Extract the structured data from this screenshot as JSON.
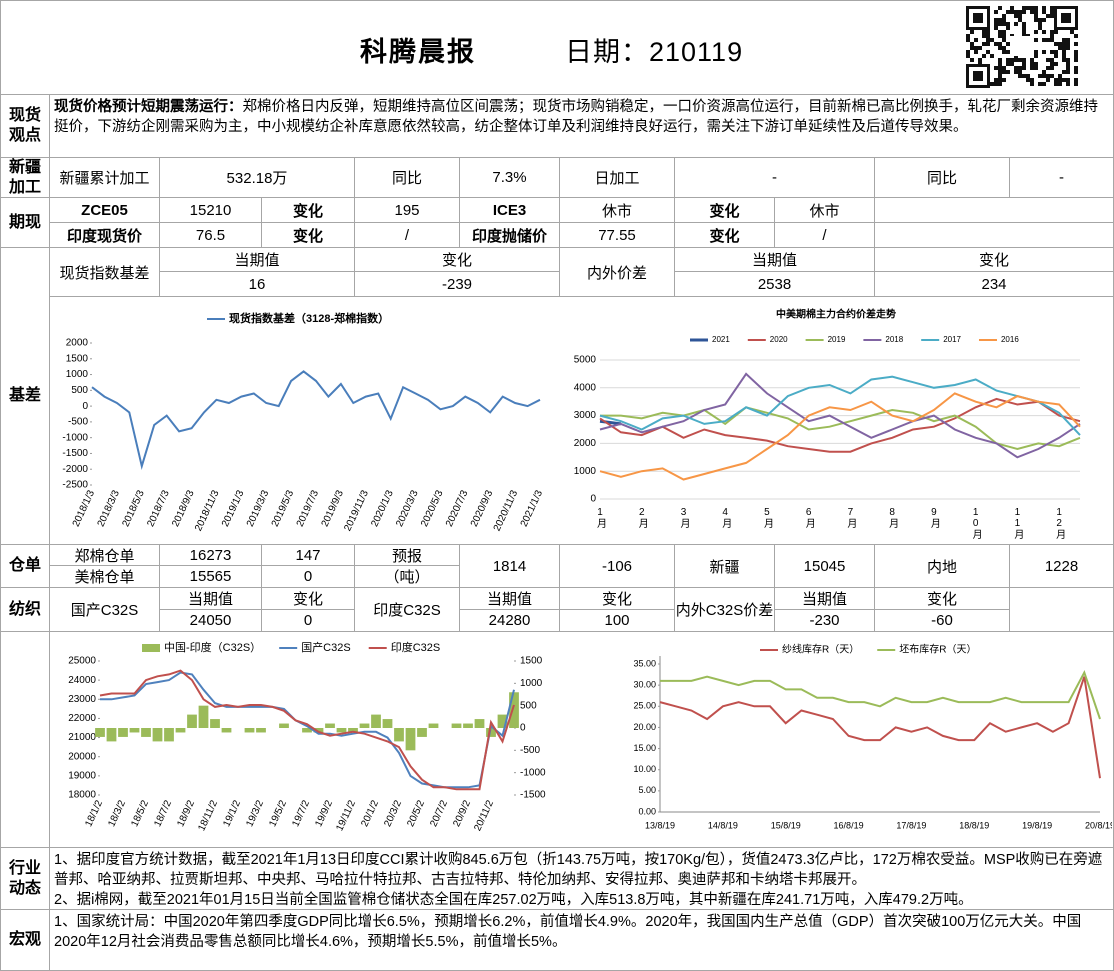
{
  "header": {
    "title": "科腾晨报",
    "date": "日期：210119"
  },
  "spot_view": {
    "label": "现货观点",
    "lead": "现货价格预计短期震荡运行：",
    "text": "郑棉价格日内反弹，短期维持高位区间震荡；现货市场购销稳定，一口价资源高位运行，目前新棉已高比例换手，轧花厂剩余资源维持挺价，下游纺企刚需采购为主，中小规模纺企补库意愿依然较高，纺企整体订单及利润维持良好运行，需关注下游订单延续性及后道传导效果。"
  },
  "xinjiang": {
    "label": "新疆加工",
    "cells": [
      "新疆累计加工",
      "532.18万",
      "同比",
      "7.3%",
      "日加工",
      "-",
      "同比",
      "-"
    ]
  },
  "futures": {
    "label": "期现",
    "rows": [
      [
        "ZCE05",
        "15210",
        "变化",
        "195",
        "ICE3",
        "休市",
        "变化",
        "休市"
      ],
      [
        "印度现货价",
        "76.5",
        "变化",
        "/",
        "印度抛储价",
        "77.55",
        "变化",
        "/"
      ]
    ]
  },
  "basis": {
    "label": "基差",
    "cells": [
      "现货指数基差",
      "当期值",
      "变化",
      "16",
      "-239",
      "内外价差",
      "当期值",
      "变化",
      "2538",
      "234"
    ]
  },
  "warehouse": {
    "label": "仓单",
    "rows": [
      [
        "郑棉仓单",
        "16273",
        "147",
        "预报",
        "1814",
        "-106",
        "新疆",
        "15045",
        "内地",
        "1228"
      ],
      [
        "美棉仓单",
        "15565",
        "0",
        "（吨）"
      ]
    ]
  },
  "textile": {
    "label": "纺织",
    "cells": [
      "国产C32S",
      "当期值",
      "变化",
      "24050",
      "0",
      "印度C32S",
      "当期值",
      "变化",
      "24280",
      "100",
      "内外C32S价差",
      "当期值",
      "变化",
      "-230",
      "-60"
    ]
  },
  "industry": {
    "label": "行业动态",
    "paragraphs": [
      "1、据印度官方统计数据，截至2021年1月13日印度CCI累计收购845.6万包（折143.75万吨，按170Kg/包），货值2473.3亿卢比，172万棉农受益。MSP收购已在旁遮普邦、哈亚纳邦、拉贾斯坦邦、中央邦、马哈拉什特拉邦、古吉拉特邦、特伦加纳邦、安得拉邦、奥迪萨邦和卡纳塔卡邦展开。",
      "2、据i棉网，截至2021年01月15日当前全国监管棉仓储状态全国在库257.02万吨，入库513.8万吨，其中新疆在库241.71万吨，入库479.2万吨。"
    ]
  },
  "macro": {
    "label": "宏观",
    "paragraphs": [
      "1、国家统计局：中国2020年第四季度GDP同比增长6.5%，预期增长6.2%，前值增长4.9%。2020年，我国国内生产总值（GDP）首次突破100万亿元大关。中国2020年12月社会消费品零售总额同比增长4.6%，预期增长5.5%，前值增长5%。"
    ]
  },
  "chart_data": [
    {
      "type": "line",
      "categories": [
        "2018/1/3",
        null,
        "2018/3/3",
        null,
        "2018/5/3",
        null,
        "2018/7/3",
        null,
        "2018/9/3",
        null,
        "2018/11/3",
        null,
        "2019/1/3",
        null,
        "2019/3/3",
        null,
        "2019/5/3",
        null,
        "2019/7/3",
        null,
        "2019/9/3",
        null,
        "2019/11/3",
        null,
        "2020/1/3",
        null,
        "2020/3/3",
        null,
        "2020/5/3",
        null,
        "2020/7/3",
        null,
        "2020/9/3",
        null,
        "2020/11/3",
        null,
        "2021/1/3"
      ],
      "series": [
        {
          "name": "现货指数基差（3128-郑棉指数）",
          "color": "#4a7ebb",
          "values": [
            600,
            300,
            100,
            -200,
            -1900,
            -600,
            -300,
            -800,
            -700,
            -200,
            200,
            100,
            300,
            400,
            100,
            0,
            800,
            1100,
            800,
            300,
            700,
            100,
            300,
            400,
            -400,
            600,
            400,
            200,
            -100,
            0,
            300,
            100,
            -200,
            300,
            100,
            0,
            200
          ]
        }
      ],
      "ylim": [
        -2500,
        2000
      ],
      "yticks": [
        2000,
        1500,
        1000,
        500,
        0,
        -500,
        -1000,
        -1500,
        -2000,
        -2500
      ],
      "grid": false
    },
    {
      "type": "line",
      "title": "中美期棉主力合约价差走势",
      "categories": [
        "1月",
        null,
        "2月",
        null,
        "3月",
        null,
        "4月",
        null,
        "5月",
        null,
        "6月",
        null,
        "7月",
        null,
        "8月",
        null,
        "9月",
        null,
        "10月",
        null,
        "11月",
        null,
        "12月",
        null
      ],
      "series": [
        {
          "name": "2021",
          "color": "#2e5597",
          "values": [
            2800,
            2700,
            null,
            null,
            null,
            null,
            null,
            null,
            null,
            null,
            null,
            null,
            null,
            null,
            null,
            null,
            null,
            null,
            null,
            null,
            null,
            null,
            null,
            null
          ]
        },
        {
          "name": "2020",
          "color": "#c0504d",
          "values": [
            2900,
            2400,
            2300,
            2600,
            2200,
            2500,
            2300,
            2200,
            2100,
            1900,
            1800,
            1700,
            1700,
            2000,
            2200,
            2500,
            2600,
            2900,
            3300,
            3600,
            3400,
            3500,
            3000,
            2800
          ]
        },
        {
          "name": "2019",
          "color": "#9bbb59",
          "values": [
            3000,
            3000,
            2900,
            3100,
            3000,
            3200,
            2700,
            3300,
            3100,
            2900,
            2500,
            2600,
            2800,
            3000,
            3200,
            3100,
            2800,
            3000,
            2600,
            2000,
            1800,
            2000,
            1900,
            2200
          ]
        },
        {
          "name": "2018",
          "color": "#8064a2",
          "values": [
            2500,
            2700,
            2400,
            2600,
            2800,
            3200,
            3400,
            4500,
            3800,
            3300,
            2800,
            3000,
            2600,
            2200,
            2500,
            2800,
            3000,
            2500,
            2200,
            2000,
            1500,
            1800,
            2200,
            2700
          ]
        },
        {
          "name": "2017",
          "color": "#4bacc6",
          "values": [
            3000,
            2800,
            2500,
            2900,
            3000,
            2700,
            2800,
            3300,
            3000,
            3700,
            4000,
            4100,
            3800,
            4300,
            4400,
            4200,
            4000,
            4100,
            4300,
            3900,
            3700,
            3500,
            3100,
            2300
          ]
        },
        {
          "name": "2016",
          "color": "#f79646",
          "values": [
            1000,
            800,
            1000,
            1100,
            700,
            900,
            1100,
            1300,
            1800,
            2300,
            3000,
            3300,
            3200,
            3500,
            3000,
            2800,
            3200,
            3800,
            3500,
            3300,
            3700,
            3500,
            3400,
            2600
          ]
        }
      ],
      "ylim": [
        0,
        5000
      ],
      "yticks": [
        5000,
        4000,
        3000,
        2000,
        1000,
        0
      ],
      "grid": true
    },
    {
      "type": "line",
      "categories": [
        "18/1/2",
        null,
        "18/3/2",
        null,
        "18/5/2",
        null,
        "18/7/2",
        null,
        "18/9/2",
        null,
        "18/11/2",
        null,
        "19/1/2",
        null,
        "19/3/2",
        null,
        "19/5/2",
        null,
        "19/7/2",
        null,
        "19/9/2",
        null,
        "19/11/2",
        null,
        "20/1/2",
        null,
        "20/3/2",
        null,
        "20/5/2",
        null,
        "20/7/2",
        null,
        "20/9/2",
        null,
        "20/11/2",
        null,
        null
      ],
      "series": [
        {
          "name": "中国-印度（C32S）",
          "color": "#9bbb59",
          "type": "bar",
          "axis": "y2",
          "values": [
            -200,
            -300,
            -200,
            -100,
            -200,
            -300,
            -300,
            -100,
            300,
            500,
            200,
            -100,
            0,
            -100,
            -100,
            0,
            100,
            0,
            -100,
            -100,
            100,
            -100,
            -100,
            100,
            300,
            200,
            -300,
            -500,
            -200,
            100,
            0,
            100,
            100,
            200,
            -200,
            300,
            800
          ]
        },
        {
          "name": "国产C32S",
          "color": "#4f81bd",
          "values": [
            23000,
            23000,
            23100,
            23200,
            23800,
            23900,
            24000,
            24400,
            24300,
            23500,
            22800,
            22600,
            22600,
            22600,
            22600,
            22600,
            22500,
            21900,
            21600,
            21200,
            21200,
            21100,
            21200,
            21300,
            21300,
            21000,
            20200,
            19000,
            18600,
            18500,
            18400,
            18400,
            18400,
            18500,
            21600,
            21100,
            23500
          ]
        },
        {
          "name": "印度C32S",
          "color": "#c0504d",
          "values": [
            23200,
            23300,
            23300,
            23300,
            24000,
            24200,
            24300,
            24500,
            24000,
            23000,
            22600,
            22700,
            22600,
            22700,
            22700,
            22600,
            22400,
            21900,
            21700,
            21300,
            21100,
            21200,
            21300,
            21200,
            21000,
            20800,
            20500,
            19500,
            18800,
            18400,
            18400,
            18300,
            18300,
            18300,
            21800,
            20800,
            22700
          ]
        }
      ],
      "ylim": [
        18000,
        25000
      ],
      "yticks": [
        25000,
        24000,
        23000,
        22000,
        21000,
        20000,
        19000,
        18000
      ],
      "y2lim": [
        -1500,
        1500
      ],
      "y2ticks": [
        1500,
        1000,
        500,
        0,
        -500,
        -1000,
        -1500
      ],
      "grid": false
    },
    {
      "type": "line",
      "categories": [
        "13/8/19",
        null,
        null,
        null,
        "14/8/19",
        null,
        null,
        null,
        "15/8/19",
        null,
        null,
        null,
        "16/8/19",
        null,
        null,
        null,
        "17/8/19",
        null,
        null,
        null,
        "18/8/19",
        null,
        null,
        null,
        "19/8/19",
        null,
        null,
        null,
        "20/8/19"
      ],
      "series": [
        {
          "name": "纱线库存R（天）",
          "color": "#c0504d",
          "values": [
            26,
            25,
            24,
            22,
            25,
            26,
            25,
            25,
            21,
            24,
            23,
            22,
            18,
            17,
            17,
            20,
            19,
            20,
            18,
            17,
            17,
            21,
            19,
            20,
            21,
            19,
            21,
            32,
            8
          ]
        },
        {
          "name": "坯布库存R（天）",
          "color": "#9bbb59",
          "values": [
            31,
            31,
            31,
            32,
            31,
            30,
            31,
            31,
            29,
            29,
            27,
            27,
            26,
            26,
            25,
            27,
            26,
            26,
            27,
            26,
            26,
            26,
            27,
            26,
            26,
            26,
            26,
            33,
            22
          ]
        }
      ],
      "ylim": [
        0,
        35
      ],
      "yticks": [
        {
          "value": 35,
          "label": "35.00"
        },
        {
          "value": 30,
          "label": "30.00"
        },
        {
          "value": 25,
          "label": "25.00"
        },
        {
          "value": 20,
          "label": "20.00"
        },
        {
          "value": 15,
          "label": "15.00"
        },
        {
          "value": 10,
          "label": "10.00"
        },
        {
          "value": 5,
          "label": "5.00"
        },
        {
          "value": 0,
          "label": "0.00"
        }
      ],
      "grid": false
    }
  ]
}
